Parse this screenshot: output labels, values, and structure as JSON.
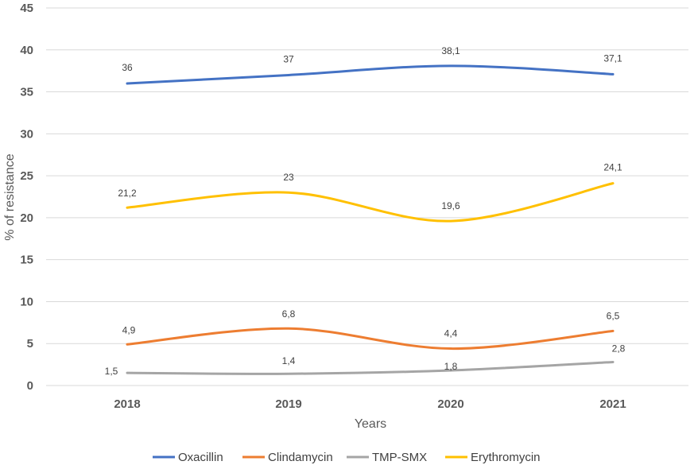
{
  "chart_data": {
    "type": "line",
    "title": "",
    "xlabel": "Years",
    "ylabel": "% of resistance",
    "categories": [
      "2018",
      "2019",
      "2020",
      "2021"
    ],
    "ylim": [
      0,
      45
    ],
    "yticks": [
      "0",
      "5",
      "10",
      "15",
      "20",
      "25",
      "30",
      "35",
      "40",
      "45"
    ],
    "grid": true,
    "legend_position": "bottom",
    "series": [
      {
        "name": "Oxacillin",
        "color": "#4472C4",
        "values": [
          36,
          37,
          38.1,
          37.1
        ],
        "labels": [
          "36",
          "37",
          "38,1",
          "37,1"
        ]
      },
      {
        "name": "Clindamycin",
        "color": "#ED7D31",
        "values": [
          4.9,
          6.8,
          4.4,
          6.5
        ],
        "labels": [
          "4,9",
          "6,8",
          "4,4",
          "6,5"
        ]
      },
      {
        "name": "TMP-SMX",
        "color": "#A5A5A5",
        "values": [
          1.5,
          1.4,
          1.8,
          2.8
        ],
        "labels": [
          "1,5",
          "1,4",
          "1,8",
          "2,8"
        ]
      },
      {
        "name": "Erythromycin",
        "color": "#FFC000",
        "values": [
          21.2,
          23,
          19.6,
          24.1
        ],
        "labels": [
          "21,2",
          "23",
          "19,6",
          "24,1"
        ]
      }
    ]
  }
}
